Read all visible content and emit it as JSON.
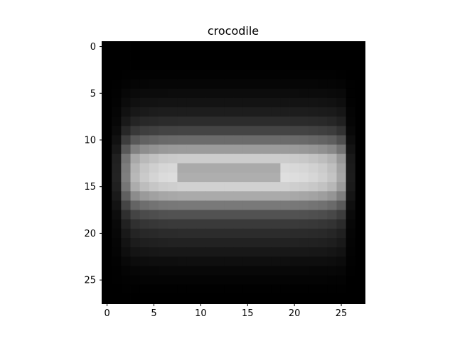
{
  "chart_data": {
    "type": "heatmap",
    "title": "crocodile",
    "colormap": "gray",
    "rows": 28,
    "cols": 28,
    "xlim": [
      -0.5,
      27.5
    ],
    "ylim": [
      27.5,
      -0.5
    ],
    "x_ticks": [
      0,
      5,
      10,
      15,
      20,
      25
    ],
    "y_ticks": [
      0,
      5,
      10,
      15,
      20,
      25
    ],
    "value_range": [
      0,
      255
    ],
    "row_profile": [
      0,
      0,
      0,
      2,
      6,
      12,
      20,
      30,
      45,
      70,
      110,
      160,
      210,
      225,
      230,
      215,
      175,
      125,
      85,
      60,
      45,
      35,
      25,
      15,
      8,
      4,
      1,
      0
    ],
    "col_profile": [
      0,
      0.15,
      0.55,
      0.8,
      0.88,
      0.92,
      0.95,
      0.96,
      0.97,
      0.97,
      0.97,
      0.97,
      0.97,
      0.97,
      0.97,
      0.97,
      0.97,
      0.97,
      0.97,
      0.97,
      0.96,
      0.95,
      0.93,
      0.9,
      0.85,
      0.72,
      0.12,
      0
    ],
    "center_dip": {
      "rows": [
        13,
        14
      ],
      "cols": [
        8,
        18
      ],
      "factor": 0.78
    }
  }
}
